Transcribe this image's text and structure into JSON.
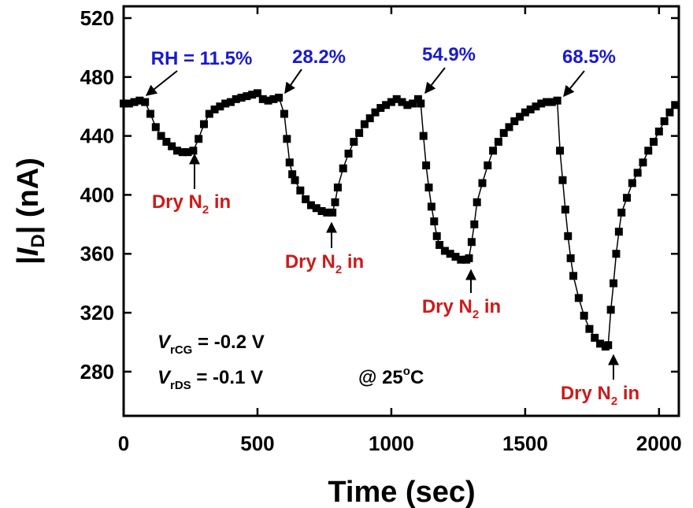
{
  "chart_data": {
    "type": "line",
    "xlabel": "Time (sec)",
    "ylabel": {
      "parts": [
        "|",
        "I",
        "D",
        "| (nA)"
      ]
    },
    "xlim": [
      0,
      2074
    ],
    "ylim": [
      250,
      528
    ],
    "xticks": [
      0,
      500,
      1000,
      1500,
      2000
    ],
    "yticks": [
      280,
      320,
      360,
      400,
      440,
      480,
      520
    ],
    "color": "#000000",
    "x": [
      0,
      20,
      40,
      60,
      80,
      100,
      120,
      140,
      160,
      180,
      200,
      220,
      240,
      260,
      280,
      300,
      320,
      340,
      360,
      380,
      400,
      420,
      440,
      460,
      480,
      500,
      520,
      540,
      560,
      580,
      600,
      610,
      620,
      630,
      640,
      660,
      680,
      700,
      720,
      740,
      760,
      780,
      790,
      800,
      820,
      840,
      860,
      880,
      900,
      920,
      940,
      960,
      980,
      1000,
      1020,
      1040,
      1060,
      1080,
      1100,
      1110,
      1120,
      1130,
      1140,
      1150,
      1160,
      1170,
      1180,
      1200,
      1220,
      1240,
      1260,
      1280,
      1290,
      1300,
      1310,
      1320,
      1340,
      1360,
      1380,
      1400,
      1420,
      1440,
      1460,
      1480,
      1500,
      1520,
      1540,
      1560,
      1580,
      1600,
      1620,
      1630,
      1640,
      1650,
      1660,
      1670,
      1680,
      1700,
      1720,
      1740,
      1760,
      1780,
      1800,
      1810,
      1820,
      1830,
      1840,
      1850,
      1860,
      1880,
      1900,
      1920,
      1940,
      1960,
      1980,
      2000,
      2020,
      2040,
      2060
    ],
    "values": [
      462,
      462,
      463,
      464,
      463,
      455,
      446,
      440,
      436,
      433,
      430,
      429,
      429,
      430,
      438,
      448,
      455,
      458,
      460,
      462,
      463,
      465,
      466,
      467,
      468,
      469,
      465,
      464,
      465,
      466,
      455,
      438,
      422,
      414,
      410,
      403,
      397,
      393,
      391,
      389,
      388,
      388,
      395,
      405,
      418,
      428,
      436,
      442,
      448,
      452,
      456,
      459,
      461,
      463,
      465,
      463,
      461,
      462,
      465,
      462,
      440,
      420,
      405,
      392,
      382,
      372,
      366,
      362,
      360,
      358,
      356,
      356,
      357,
      368,
      380,
      395,
      408,
      420,
      430,
      436,
      442,
      446,
      450,
      453,
      456,
      458,
      460,
      462,
      463,
      463,
      464,
      430,
      410,
      390,
      372,
      357,
      345,
      330,
      318,
      309,
      303,
      299,
      297,
      298,
      322,
      340,
      360,
      375,
      388,
      398,
      408,
      415,
      422,
      430,
      436,
      443,
      450,
      456,
      461
    ],
    "annotations": [
      {
        "text": "RH = 11.5%"
      },
      {
        "text": "28.2%"
      },
      {
        "text": "54.9%"
      },
      {
        "text": "68.5%"
      },
      {
        "parts": [
          "Dry N",
          "2",
          " in"
        ]
      },
      {
        "parts": [
          "Dry N",
          "2",
          " in"
        ]
      },
      {
        "parts": [
          "Dry N",
          "2",
          " in"
        ]
      },
      {
        "parts": [
          "Dry N",
          "2",
          " in"
        ]
      },
      {
        "parts": [
          "V",
          "rCG",
          " = -0.2 V"
        ]
      },
      {
        "parts": [
          "V",
          "rDS",
          " = -0.1 V"
        ]
      },
      {
        "parts": [
          "@ 25",
          "o",
          "C"
        ]
      }
    ]
  }
}
